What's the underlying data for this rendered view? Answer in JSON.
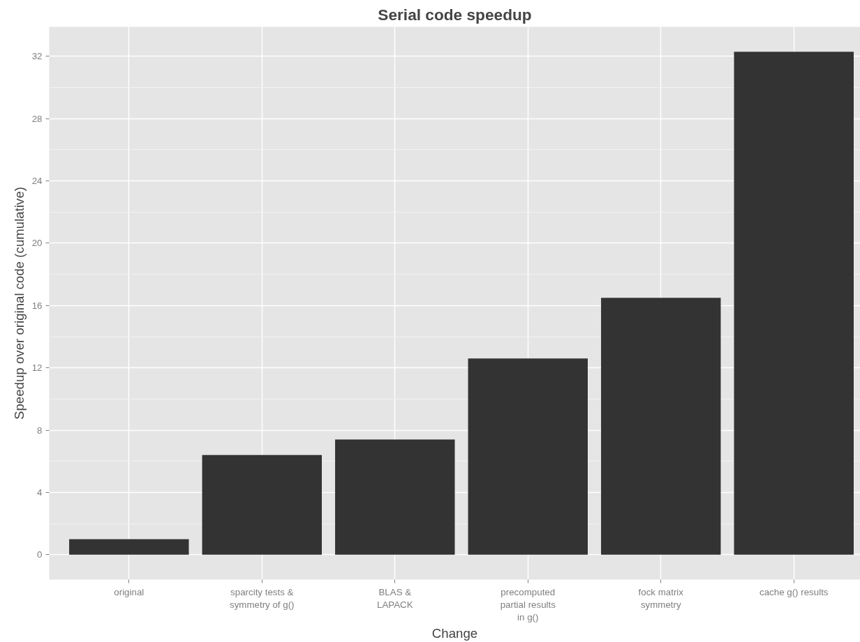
{
  "chart_data": {
    "type": "bar",
    "title": "Serial code speedup",
    "xlabel": "Change",
    "ylabel": "Speedup over original code (cumulative)",
    "categories": [
      "original",
      "sparcity tests &\nsymmetry of g()",
      "BLAS &\nLAPACK",
      "precomputed\npartial results\nin g()",
      "fock matrix\nsymmetry",
      "cache g() results"
    ],
    "values": [
      1.0,
      6.4,
      7.4,
      12.6,
      16.5,
      32.3
    ],
    "color": "#333333",
    "ylim": [
      -1.6,
      33.9
    ],
    "yticks": [
      0,
      4,
      8,
      12,
      16,
      20,
      24,
      28,
      32
    ],
    "grid": true
  }
}
